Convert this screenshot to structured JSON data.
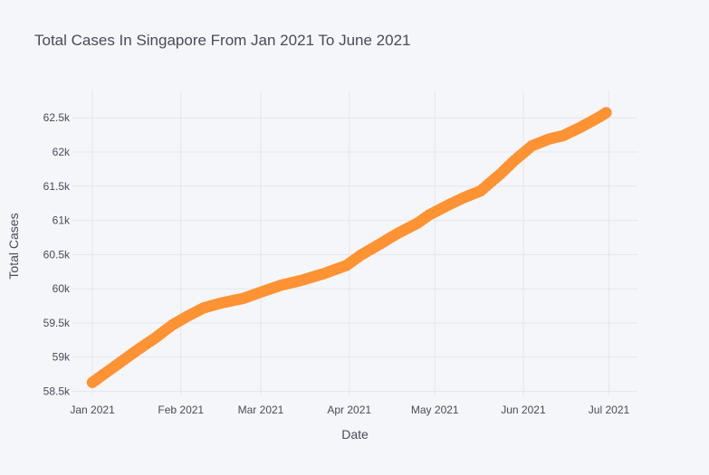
{
  "chart_data": {
    "type": "scatter",
    "title": "Total Cases In Singapore From Jan 2021 To June 2021",
    "xlabel": "Date",
    "ylabel": "Total Cases",
    "xlim": [
      "2020-12-25",
      "2021-07-11"
    ],
    "ylim": [
      58440,
      62900
    ],
    "x_ticks": [
      {
        "date": "2021-01-01",
        "label": "Jan 2021"
      },
      {
        "date": "2021-02-01",
        "label": "Feb 2021"
      },
      {
        "date": "2021-03-01",
        "label": "Mar 2021"
      },
      {
        "date": "2021-04-01",
        "label": "Apr 2021"
      },
      {
        "date": "2021-05-01",
        "label": "May 2021"
      },
      {
        "date": "2021-06-01",
        "label": "Jun 2021"
      },
      {
        "date": "2021-07-01",
        "label": "Jul 2021"
      }
    ],
    "y_ticks": [
      {
        "value": 58500,
        "label": "58.5k"
      },
      {
        "value": 59000,
        "label": "59k"
      },
      {
        "value": 59500,
        "label": "59.5k"
      },
      {
        "value": 60000,
        "label": "60k"
      },
      {
        "value": 60500,
        "label": "60.5k"
      },
      {
        "value": 61000,
        "label": "61k"
      },
      {
        "value": 61500,
        "label": "61.5k"
      },
      {
        "value": 62000,
        "label": "62k"
      },
      {
        "value": 62500,
        "label": "62.5k"
      }
    ],
    "grid": true,
    "marker_color": "#ff9233",
    "series": [
      {
        "points": [
          [
            "2021-01-01",
            58630
          ],
          [
            "2021-01-06",
            58780
          ],
          [
            "2021-01-12",
            58960
          ],
          [
            "2021-01-17",
            59110
          ],
          [
            "2021-01-23",
            59280
          ],
          [
            "2021-01-29",
            59470
          ],
          [
            "2021-02-03",
            59590
          ],
          [
            "2021-02-09",
            59720
          ],
          [
            "2021-02-15",
            59790
          ],
          [
            "2021-02-23",
            59860
          ],
          [
            "2021-03-01",
            59950
          ],
          [
            "2021-03-08",
            60050
          ],
          [
            "2021-03-15",
            60120
          ],
          [
            "2021-03-23",
            60220
          ],
          [
            "2021-03-31",
            60340
          ],
          [
            "2021-04-05",
            60490
          ],
          [
            "2021-04-12",
            60660
          ],
          [
            "2021-04-18",
            60810
          ],
          [
            "2021-04-25",
            60960
          ],
          [
            "2021-04-29",
            61080
          ],
          [
            "2021-05-06",
            61230
          ],
          [
            "2021-05-11",
            61330
          ],
          [
            "2021-05-17",
            61430
          ],
          [
            "2021-05-24",
            61680
          ],
          [
            "2021-05-29",
            61880
          ],
          [
            "2021-06-04",
            62090
          ],
          [
            "2021-06-10",
            62190
          ],
          [
            "2021-06-15",
            62240
          ],
          [
            "2021-06-21",
            62360
          ],
          [
            "2021-06-28",
            62520
          ],
          [
            "2021-06-30",
            62575
          ]
        ]
      }
    ]
  }
}
